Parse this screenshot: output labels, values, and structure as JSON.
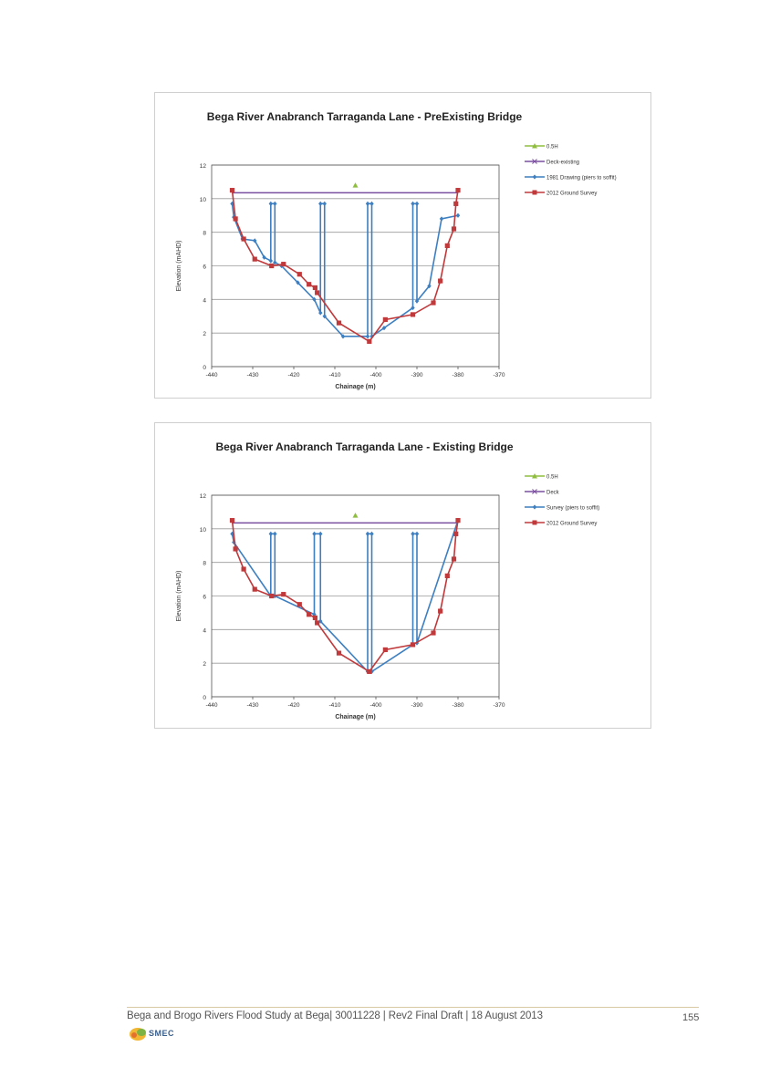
{
  "footer": {
    "text": "Bega and Brogo Rivers Flood Study at Bega| 30011228 | Rev2 Final Draft | 18 August 2013",
    "page_number": "155",
    "logo_text": "SMEC"
  },
  "colors": {
    "pier": "#3d7fc1",
    "ground": "#c0393b",
    "deck": "#7a4fa0",
    "half_h": "#8fbd3f",
    "grid": "#9a9a9a"
  },
  "chart_data": [
    {
      "type": "line",
      "title": "Bega River Anabranch Tarraganda Lane  - PreExisting Bridge",
      "xlabel": "Chainage (m)",
      "ylabel": "Elevation (mAHD)",
      "xlim": [
        -440,
        -370
      ],
      "ylim": [
        0,
        12
      ],
      "xticks": [
        -440,
        -430,
        -420,
        -410,
        -400,
        -390,
        -380,
        -370
      ],
      "yticks": [
        0,
        2,
        4,
        6,
        8,
        10,
        12
      ],
      "grid": true,
      "legend_position": "right",
      "legend": [
        "0.5H",
        "Deck-existing",
        "1981 Drawing (piers to soffit)",
        "2012 Ground Survey"
      ],
      "half_h": {
        "name": "0.5H",
        "x": [
          -405
        ],
        "y": [
          10.8
        ]
      },
      "deck": {
        "name": "Deck-existing",
        "x": [
          -435,
          -380
        ],
        "y": [
          10.35,
          10.35
        ]
      },
      "survey": {
        "name": "1981 Drawing (piers to soffit)",
        "x": [
          -435,
          -434.6,
          -432.5,
          -429.5,
          -427.2,
          -425.6,
          -425.6,
          -424.6,
          -424.6,
          -423,
          -419,
          -415,
          -413.5,
          -413.5,
          -412.5,
          -412.5,
          -408,
          -402,
          -402,
          -401,
          -401,
          -398,
          -391,
          -391,
          -390,
          -390,
          -387,
          -384,
          -380
        ],
        "y": [
          9.7,
          8.9,
          7.6,
          7.5,
          6.5,
          6.3,
          9.7,
          9.7,
          6.2,
          6.0,
          5.0,
          4.0,
          3.2,
          9.7,
          9.7,
          3.0,
          1.8,
          1.8,
          9.7,
          9.7,
          1.8,
          2.3,
          3.5,
          9.7,
          9.7,
          3.9,
          4.8,
          8.8,
          9.0
        ]
      },
      "ground": {
        "name": "2012 Ground Survey",
        "x": [
          -435,
          -434.2,
          -432.2,
          -429.5,
          -425.4,
          -422.5,
          -418.6,
          -416.3,
          -414.8,
          -414.3,
          -409,
          -401.6,
          -397.7,
          -391,
          -386,
          -384.3,
          -382.6,
          -381,
          -380.5,
          -380
        ],
        "y": [
          10.5,
          8.8,
          7.6,
          6.4,
          6.0,
          6.1,
          5.5,
          4.9,
          4.7,
          4.4,
          2.6,
          1.5,
          2.8,
          3.1,
          3.8,
          5.1,
          7.2,
          8.2,
          9.7,
          10.5
        ]
      }
    },
    {
      "type": "line",
      "title": "Bega River Anabranch Tarraganda Lane  - Existing Bridge",
      "xlabel": "Chainage (m)",
      "ylabel": "Elevation (mAHD)",
      "xlim": [
        -440,
        -370
      ],
      "ylim": [
        0,
        12
      ],
      "xticks": [
        -440,
        -430,
        -420,
        -410,
        -400,
        -390,
        -380,
        -370
      ],
      "yticks": [
        0,
        2,
        4,
        6,
        8,
        10,
        12
      ],
      "grid": true,
      "legend_position": "right",
      "legend": [
        "0.5H",
        "Deck",
        "Survey (piers to soffit)",
        "2012 Ground Survey"
      ],
      "half_h": {
        "name": "0.5H",
        "x": [
          -405
        ],
        "y": [
          10.8
        ]
      },
      "deck": {
        "name": "Deck",
        "x": [
          -435,
          -380
        ],
        "y": [
          10.35,
          10.35
        ]
      },
      "survey": {
        "name": "Survey (piers to soffit)",
        "x": [
          -435,
          -434.6,
          -425.6,
          -425.6,
          -424.6,
          -424.6,
          -415,
          -415,
          -413.5,
          -413.5,
          -402,
          -402,
          -401,
          -401,
          -391,
          -391,
          -390,
          -390,
          -380
        ],
        "y": [
          9.7,
          9.2,
          6.0,
          9.7,
          9.7,
          6.0,
          4.9,
          9.7,
          9.7,
          4.5,
          1.5,
          9.7,
          9.7,
          1.5,
          3.1,
          9.7,
          9.7,
          3.2,
          10.5
        ]
      },
      "ground": {
        "name": "2012 Ground Survey",
        "x": [
          -435,
          -434.2,
          -432.2,
          -429.5,
          -425.4,
          -422.5,
          -418.6,
          -416.3,
          -414.8,
          -414.3,
          -409,
          -401.6,
          -397.7,
          -391,
          -386,
          -384.3,
          -382.6,
          -381,
          -380.5,
          -380
        ],
        "y": [
          10.5,
          8.8,
          7.6,
          6.4,
          6.0,
          6.1,
          5.5,
          4.9,
          4.7,
          4.4,
          2.6,
          1.5,
          2.8,
          3.1,
          3.8,
          5.1,
          7.2,
          8.2,
          9.7,
          10.5
        ]
      }
    }
  ]
}
